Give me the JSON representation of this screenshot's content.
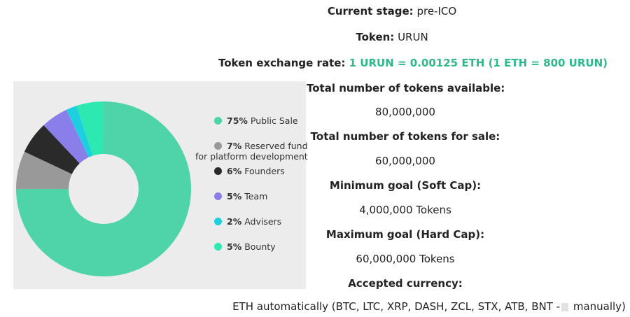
{
  "info": {
    "stage_label": "Current stage:",
    "stage_value": " pre-ICO",
    "token_label": "Token:",
    "token_value": " URUN",
    "rate_label": "Token exchange rate: ",
    "rate_value": "1 URUN = 0.00125 ETH (1 ETH = 800 URUN)",
    "total_label": "Total number of tokens available:",
    "total_value": "80,000,000",
    "sale_label": "Total number of tokens for sale:",
    "sale_value": "60,000,000",
    "soft_label": "Minimum goal (Soft Cap):",
    "soft_value": "4,000,000 Tokens",
    "hard_label": "Maximum goal (Hard Cap):",
    "hard_value": "60,000,000 Tokens",
    "currency_label": "Accepted currency:",
    "currency_value_a": "ETH automatically (BTC, LTC, XRP, DASH, ZCL, STX, ATB, BNT -",
    "currency_value_b": " manually)"
  },
  "colors": {
    "accent": "#2eb88c",
    "panel_bg": "#ececec"
  },
  "chart_data": {
    "type": "pie",
    "style": "double donut",
    "labels": [
      "Public Sale",
      "Reserved fund for platform development",
      "Founders",
      "Team",
      "Advisers",
      "Bounty"
    ],
    "values": [
      75,
      7,
      6,
      5,
      2,
      5
    ],
    "colors": [
      "#4fd3a8",
      "#999999",
      "#2a2a2a",
      "#8a7fea",
      "#1ecfe0",
      "#2de8b0"
    ],
    "legend": [
      {
        "pct": "75%",
        "label": " Public Sale"
      },
      {
        "pct": "7%",
        "label": " Reserved fund",
        "label_cont": "for platform development"
      },
      {
        "pct": "6%",
        "label": " Founders"
      },
      {
        "pct": "5%",
        "label": " Team"
      },
      {
        "pct": "2%",
        "label": " Advisers"
      },
      {
        "pct": "5%",
        "label": " Bounty"
      }
    ],
    "legend_position": "right"
  }
}
